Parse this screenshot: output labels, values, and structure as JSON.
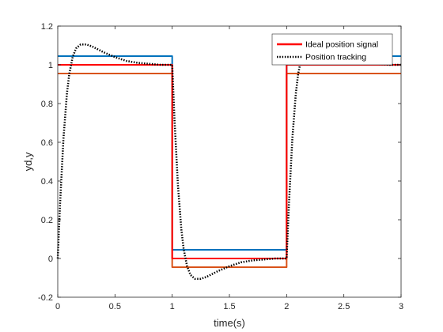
{
  "chart_data": {
    "type": "line",
    "title": "",
    "xlabel": "time(s)",
    "ylabel": "yd,y",
    "xlim": [
      0,
      3
    ],
    "ylim": [
      -0.2,
      1.2
    ],
    "xticks": [
      "0",
      "0.5",
      "1",
      "1.5",
      "2",
      "2.5",
      "3"
    ],
    "yticks": [
      "-0.2",
      "0",
      "0.2",
      "0.4",
      "0.6",
      "0.8",
      "1",
      "1.2"
    ],
    "grid": false,
    "legend_position": "top-right",
    "series": [
      {
        "name": "Ideal position signal",
        "color": "#ff0000",
        "style": "solid",
        "x": [
          0,
          1,
          1,
          2,
          2,
          3
        ],
        "y": [
          1,
          1,
          0,
          0,
          1,
          1
        ]
      },
      {
        "name": "",
        "color": "#0072bd",
        "style": "solid",
        "x": [
          0,
          1,
          1,
          2,
          2,
          3
        ],
        "y": [
          1.045,
          1.045,
          0.045,
          0.045,
          1.045,
          1.045
        ]
      },
      {
        "name": "",
        "color": "#d95319",
        "style": "solid",
        "x": [
          0,
          1,
          1,
          2,
          2,
          3
        ],
        "y": [
          0.955,
          0.955,
          -0.045,
          -0.045,
          0.955,
          0.955
        ]
      },
      {
        "name": "Position tracking",
        "color": "#000000",
        "style": "dotted",
        "x": [
          0,
          0.02,
          0.05,
          0.08,
          0.1,
          0.13,
          0.16,
          0.2,
          0.25,
          0.3,
          0.35,
          0.4,
          0.5,
          0.6,
          0.7,
          0.8,
          0.9,
          1.0,
          1.02,
          1.05,
          1.08,
          1.1,
          1.13,
          1.16,
          1.2,
          1.25,
          1.3,
          1.35,
          1.4,
          1.5,
          1.6,
          1.7,
          1.8,
          1.9,
          2.0,
          2.02,
          2.05,
          2.08,
          2.1,
          2.13,
          2.16,
          2.2,
          2.25,
          2.3,
          2.35,
          2.4,
          2.5,
          2.6,
          2.7,
          2.8,
          2.9,
          3.0
        ],
        "y": [
          0,
          0.28,
          0.62,
          0.85,
          0.95,
          1.04,
          1.085,
          1.105,
          1.105,
          1.095,
          1.08,
          1.065,
          1.04,
          1.02,
          1.01,
          1.005,
          1.0,
          1.0,
          0.72,
          0.38,
          0.15,
          0.05,
          -0.04,
          -0.085,
          -0.105,
          -0.105,
          -0.095,
          -0.08,
          -0.065,
          -0.04,
          -0.02,
          -0.01,
          -0.005,
          0.0,
          0.0,
          0.28,
          0.62,
          0.85,
          0.95,
          1.04,
          1.085,
          1.105,
          1.105,
          1.095,
          1.08,
          1.065,
          1.04,
          1.02,
          1.01,
          1.005,
          1.0,
          1.0
        ]
      }
    ]
  }
}
